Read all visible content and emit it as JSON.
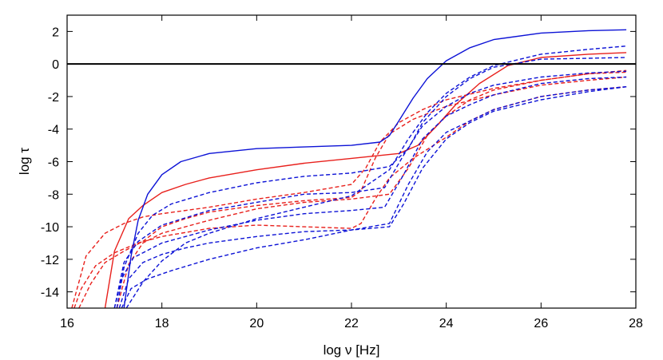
{
  "chart_data": {
    "type": "line",
    "xlabel": "log ν [Hz]",
    "ylabel": "log τ",
    "xlim": [
      16,
      28
    ],
    "ylim": [
      -15,
      3
    ],
    "x_ticks": [
      16,
      18,
      20,
      22,
      24,
      26,
      28
    ],
    "y_ticks": [
      2,
      0,
      -2,
      -4,
      -6,
      -8,
      -10,
      -12,
      -14
    ],
    "grid": false,
    "reference_line": {
      "y": 0,
      "color": "#000000"
    },
    "colors": {
      "red": "#e8201c",
      "blue": "#0c12d6",
      "axis": "#000000"
    },
    "series": [
      {
        "color": "red",
        "dash": "solid",
        "points": [
          [
            16.8,
            -15
          ],
          [
            17.0,
            -11.5
          ],
          [
            17.3,
            -9.5
          ],
          [
            17.6,
            -8.7
          ],
          [
            18,
            -7.9
          ],
          [
            18.5,
            -7.4
          ],
          [
            19,
            -7.0
          ],
          [
            20,
            -6.5
          ],
          [
            21,
            -6.1
          ],
          [
            22,
            -5.8
          ],
          [
            23,
            -5.5
          ],
          [
            23.4,
            -5.0
          ],
          [
            23.8,
            -3.8
          ],
          [
            24.2,
            -2.5
          ],
          [
            24.7,
            -1.2
          ],
          [
            25.3,
            -0.1
          ],
          [
            26,
            0.4
          ],
          [
            27,
            0.6
          ],
          [
            27.8,
            0.7
          ]
        ]
      },
      {
        "color": "red",
        "dash": "dashed",
        "points": [
          [
            16.15,
            -15
          ],
          [
            16.3,
            -13.8
          ],
          [
            16.6,
            -12.4
          ],
          [
            17,
            -11.6
          ],
          [
            17.5,
            -11.0
          ],
          [
            18,
            -10.6
          ],
          [
            19,
            -10.1
          ],
          [
            20,
            -9.9
          ],
          [
            21,
            -10.0
          ],
          [
            22,
            -10.1
          ],
          [
            22.2,
            -9.8
          ],
          [
            22.5,
            -8.3
          ],
          [
            22.8,
            -7.0
          ],
          [
            23.3,
            -5.8
          ],
          [
            24,
            -4.5
          ],
          [
            24.5,
            -3.5
          ],
          [
            25,
            -2.8
          ],
          [
            26,
            -2.0
          ],
          [
            27,
            -1.6
          ],
          [
            27.8,
            -1.4
          ]
        ]
      },
      {
        "color": "red",
        "dash": "dashed",
        "points": [
          [
            16.25,
            -15
          ],
          [
            16.5,
            -13.5
          ],
          [
            16.8,
            -12.2
          ],
          [
            17.2,
            -11.5
          ],
          [
            17.6,
            -10.9
          ],
          [
            18,
            -10.0
          ],
          [
            18.5,
            -9.5
          ],
          [
            19,
            -9.1
          ],
          [
            20,
            -8.7
          ],
          [
            21,
            -8.4
          ],
          [
            22,
            -8.2
          ],
          [
            22.2,
            -7.8
          ],
          [
            22.5,
            -5.8
          ],
          [
            22.8,
            -4.3
          ],
          [
            23.3,
            -3.4
          ],
          [
            24,
            -2.6
          ],
          [
            25,
            -1.9
          ],
          [
            26,
            -1.3
          ],
          [
            27,
            -1.0
          ],
          [
            27.8,
            -0.8
          ]
        ]
      },
      {
        "color": "red",
        "dash": "dashed",
        "points": [
          [
            16.1,
            -15
          ],
          [
            16.4,
            -11.8
          ],
          [
            16.8,
            -10.4
          ],
          [
            17.2,
            -9.8
          ],
          [
            17.6,
            -9.4
          ],
          [
            18,
            -9.2
          ],
          [
            19,
            -8.8
          ],
          [
            20,
            -8.3
          ],
          [
            21,
            -7.9
          ],
          [
            22,
            -7.4
          ],
          [
            22.3,
            -6.4
          ],
          [
            22.6,
            -4.8
          ],
          [
            23,
            -3.6
          ],
          [
            23.5,
            -2.8
          ],
          [
            24,
            -2.2
          ],
          [
            25,
            -1.5
          ],
          [
            26,
            -1.0
          ],
          [
            27,
            -0.6
          ],
          [
            27.8,
            -0.5
          ]
        ]
      },
      {
        "color": "red",
        "dash": "dashed",
        "points": [
          [
            17.05,
            -15
          ],
          [
            17.3,
            -12.3
          ],
          [
            17.6,
            -11.0
          ],
          [
            18,
            -10.4
          ],
          [
            19,
            -9.6
          ],
          [
            20,
            -8.9
          ],
          [
            21,
            -8.5
          ],
          [
            22,
            -8.3
          ],
          [
            22.8,
            -8.0
          ],
          [
            23.2,
            -6.4
          ],
          [
            23.6,
            -4.4
          ],
          [
            24,
            -3.2
          ],
          [
            24.5,
            -2.2
          ],
          [
            25,
            -1.6
          ],
          [
            26,
            -1.0
          ],
          [
            27,
            -0.6
          ],
          [
            27.8,
            -0.4
          ]
        ]
      },
      {
        "color": "blue",
        "dash": "solid",
        "points": [
          [
            17.2,
            -15
          ],
          [
            17.35,
            -11.8
          ],
          [
            17.5,
            -9.6
          ],
          [
            17.7,
            -8.0
          ],
          [
            18,
            -6.8
          ],
          [
            18.4,
            -6.0
          ],
          [
            19,
            -5.5
          ],
          [
            20,
            -5.2
          ],
          [
            21,
            -5.1
          ],
          [
            22,
            -5.0
          ],
          [
            22.6,
            -4.8
          ],
          [
            22.8,
            -4.4
          ],
          [
            23,
            -3.5
          ],
          [
            23.3,
            -2.1
          ],
          [
            23.6,
            -0.9
          ],
          [
            24,
            0.2
          ],
          [
            24.5,
            1.0
          ],
          [
            25,
            1.5
          ],
          [
            26,
            1.9
          ],
          [
            27,
            2.05
          ],
          [
            27.8,
            2.1
          ]
        ]
      },
      {
        "color": "blue",
        "dash": "dashed",
        "points": [
          [
            17.05,
            -15
          ],
          [
            17.2,
            -12.5
          ],
          [
            17.5,
            -10.4
          ],
          [
            17.8,
            -9.3
          ],
          [
            18.2,
            -8.6
          ],
          [
            19,
            -7.9
          ],
          [
            20,
            -7.3
          ],
          [
            21,
            -6.9
          ],
          [
            22,
            -6.7
          ],
          [
            22.8,
            -6.3
          ],
          [
            23.2,
            -5.2
          ],
          [
            23.5,
            -3.6
          ],
          [
            24,
            -2.0
          ],
          [
            24.5,
            -0.9
          ],
          [
            25,
            -0.2
          ],
          [
            26,
            0.3
          ],
          [
            27,
            0.35
          ],
          [
            27.8,
            0.4
          ]
        ]
      },
      {
        "color": "blue",
        "dash": "dashed",
        "points": [
          [
            17.0,
            -15
          ],
          [
            17.2,
            -12.2
          ],
          [
            17.5,
            -10.9
          ],
          [
            18,
            -9.9
          ],
          [
            19,
            -9.0
          ],
          [
            20,
            -8.5
          ],
          [
            21,
            -8.0
          ],
          [
            22,
            -7.9
          ],
          [
            22.7,
            -7.6
          ],
          [
            23.1,
            -5.6
          ],
          [
            23.5,
            -3.8
          ],
          [
            24,
            -2.6
          ],
          [
            24.5,
            -1.8
          ],
          [
            25,
            -1.3
          ],
          [
            26,
            -0.8
          ],
          [
            27,
            -0.55
          ],
          [
            27.8,
            -0.45
          ]
        ]
      },
      {
        "color": "blue",
        "dash": "dashed",
        "points": [
          [
            17.0,
            -15
          ],
          [
            17.15,
            -13.2
          ],
          [
            17.4,
            -11.9
          ],
          [
            18,
            -11.0
          ],
          [
            18.5,
            -10.6
          ],
          [
            19,
            -10.2
          ],
          [
            20,
            -9.6
          ],
          [
            21,
            -9.2
          ],
          [
            22,
            -9.0
          ],
          [
            22.7,
            -8.8
          ],
          [
            23.1,
            -6.8
          ],
          [
            23.5,
            -4.6
          ],
          [
            24,
            -3.2
          ],
          [
            24.5,
            -2.5
          ],
          [
            25,
            -1.9
          ],
          [
            26,
            -1.2
          ],
          [
            27,
            -0.9
          ],
          [
            27.8,
            -0.8
          ]
        ]
      },
      {
        "color": "blue",
        "dash": "dashed",
        "points": [
          [
            17.1,
            -15
          ],
          [
            17.3,
            -13.2
          ],
          [
            17.6,
            -12.2
          ],
          [
            18,
            -11.7
          ],
          [
            18.5,
            -11.3
          ],
          [
            19,
            -11.0
          ],
          [
            20,
            -10.6
          ],
          [
            21,
            -10.3
          ],
          [
            22,
            -10.2
          ],
          [
            22.8,
            -10.0
          ],
          [
            23.1,
            -8.6
          ],
          [
            23.5,
            -6.4
          ],
          [
            24,
            -4.6
          ],
          [
            24.5,
            -3.6
          ],
          [
            25,
            -2.9
          ],
          [
            26,
            -2.2
          ],
          [
            27,
            -1.7
          ],
          [
            27.8,
            -1.4
          ]
        ]
      },
      {
        "color": "blue",
        "dash": "dashed",
        "points": [
          [
            17.15,
            -15
          ],
          [
            17.35,
            -13.8
          ],
          [
            17.7,
            -13.2
          ],
          [
            18.2,
            -12.7
          ],
          [
            19,
            -12.0
          ],
          [
            20,
            -11.3
          ],
          [
            21,
            -10.8
          ],
          [
            22,
            -10.2
          ],
          [
            22.8,
            -9.8
          ],
          [
            23.2,
            -7.4
          ],
          [
            23.6,
            -5.4
          ],
          [
            24,
            -4.2
          ],
          [
            25,
            -2.8
          ],
          [
            26,
            -2.0
          ],
          [
            27,
            -1.6
          ],
          [
            27.8,
            -1.4
          ]
        ]
      },
      {
        "color": "blue",
        "dash": "dashed",
        "points": [
          [
            17.25,
            -15
          ],
          [
            17.6,
            -13.4
          ],
          [
            18,
            -12.1
          ],
          [
            18.5,
            -11.0
          ],
          [
            19,
            -10.4
          ],
          [
            20,
            -9.5
          ],
          [
            21,
            -8.8
          ],
          [
            22,
            -8.1
          ],
          [
            22.8,
            -6.5
          ],
          [
            23.2,
            -4.6
          ],
          [
            23.6,
            -3.0
          ],
          [
            24,
            -1.8
          ],
          [
            24.5,
            -0.8
          ],
          [
            25,
            -0.1
          ],
          [
            26,
            0.6
          ],
          [
            27,
            0.9
          ],
          [
            27.8,
            1.1
          ]
        ]
      }
    ]
  }
}
